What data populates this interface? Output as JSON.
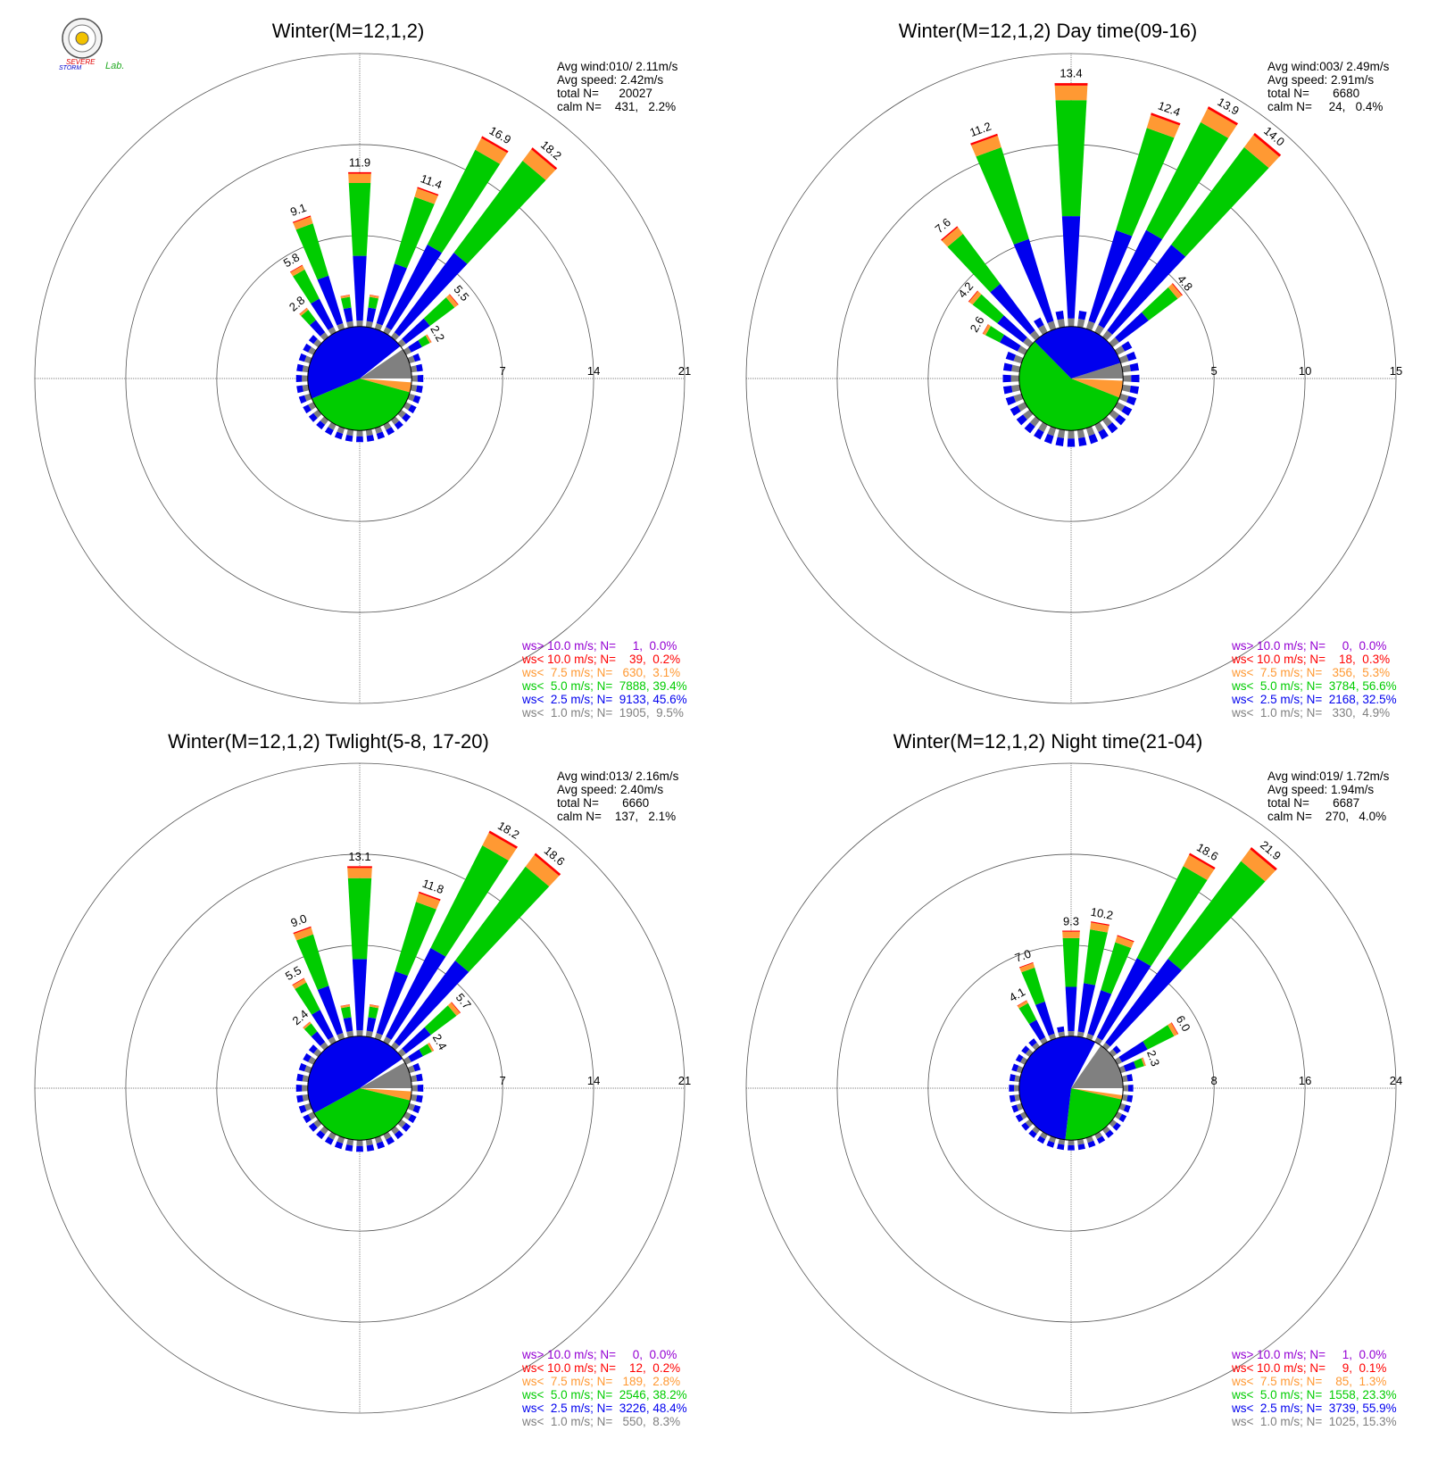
{
  "logo": {
    "lab_text_1": "SEVERE",
    "lab_text_2": "STORM",
    "lab_text_3": "Lab."
  },
  "colors": {
    "gt10": "#9400d3",
    "lt10": "#ff0000",
    "lt7_5": "#ff9933",
    "lt5": "#00cc00",
    "lt2_5": "#0000ee",
    "lt1": "#808080"
  },
  "chart_data": [
    {
      "type": "polar-bar",
      "title": "Winter(M=12,1,2)",
      "stats": {
        "avg_wind": "Avg wind:010/ 2.11m/s",
        "avg_speed": "Avg speed: 2.42m/s",
        "total": "total N=      20027",
        "calm": "calm N=    431,   2.2%"
      },
      "rmax": 21,
      "ring_labels": [
        "7",
        "14",
        "21"
      ],
      "bars": [
        {
          "dir": 320,
          "total": 2.8,
          "label": "2.8"
        },
        {
          "dir": 330,
          "total": 5.8,
          "label": "5.8"
        },
        {
          "dir": 340,
          "total": 9.1,
          "label": "9.1"
        },
        {
          "dir": 350,
          "total": 2.5
        },
        {
          "dir": 0,
          "total": 11.9,
          "label": "11.9"
        },
        {
          "dir": 10,
          "total": 2.5
        },
        {
          "dir": 20,
          "total": 11.4,
          "label": "11.4"
        },
        {
          "dir": 30,
          "total": 16.9,
          "label": "16.9"
        },
        {
          "dir": 40,
          "total": 18.2,
          "label": "18.2"
        },
        {
          "dir": 50,
          "total": 5.5,
          "label": "5.5"
        },
        {
          "dir": 60,
          "total": 2.2,
          "label": "2.2"
        }
      ],
      "pie": [
        {
          "cls": "lt1",
          "pct": 9.5
        },
        {
          "cls": "white",
          "pct": 1.2
        },
        {
          "cls": "lt7_5",
          "pct": 3.1
        },
        {
          "cls": "lt5",
          "pct": 39.4
        },
        {
          "cls": "lt2_5",
          "pct": 45.6
        }
      ],
      "legend": [
        {
          "text": "ws> 10.0 m/s; N=     1,  0.0%",
          "cls": "gt10"
        },
        {
          "text": "ws< 10.0 m/s; N=    39,  0.2%",
          "cls": "lt10"
        },
        {
          "text": "ws<  7.5 m/s; N=   630,  3.1%",
          "cls": "lt7_5"
        },
        {
          "text": "ws<  5.0 m/s; N=  7888, 39.4%",
          "cls": "lt5"
        },
        {
          "text": "ws<  2.5 m/s; N=  9133, 45.6%",
          "cls": "lt2_5"
        },
        {
          "text": "ws<  1.0 m/s; N=  1905,  9.5%",
          "cls": "lt1"
        }
      ]
    },
    {
      "type": "polar-bar",
      "title": "Winter(M=12,1,2) Day time(09-16)",
      "stats": {
        "avg_wind": "Avg wind:003/ 2.49m/s",
        "avg_speed": "Avg speed: 2.91m/s",
        "total": "total N=       6680",
        "calm": "calm N=     24,   0.4%"
      },
      "rmax": 15,
      "ring_labels": [
        "5",
        "10",
        "15"
      ],
      "bars": [
        {
          "dir": 300,
          "total": 2.6,
          "label": "2.6"
        },
        {
          "dir": 310,
          "total": 4.2,
          "label": "4.2"
        },
        {
          "dir": 320,
          "total": 7.6,
          "label": "7.6"
        },
        {
          "dir": 340,
          "total": 11.2,
          "label": "11.2"
        },
        {
          "dir": 0,
          "total": 13.4,
          "label": "13.4"
        },
        {
          "dir": 20,
          "total": 12.4,
          "label": "12.4"
        },
        {
          "dir": 30,
          "total": 13.9,
          "label": "13.9"
        },
        {
          "dir": 40,
          "total": 14.0,
          "label": "14.0"
        },
        {
          "dir": 50,
          "total": 4.8,
          "label": "4.8"
        }
      ],
      "pie": [
        {
          "cls": "lt1",
          "pct": 4.9
        },
        {
          "cls": "white",
          "pct": 0.7
        },
        {
          "cls": "lt7_5",
          "pct": 5.3
        },
        {
          "cls": "lt5",
          "pct": 56.6
        },
        {
          "cls": "lt2_5",
          "pct": 32.5
        }
      ],
      "legend": [
        {
          "text": "ws> 10.0 m/s; N=     0,  0.0%",
          "cls": "gt10"
        },
        {
          "text": "ws< 10.0 m/s; N=    18,  0.3%",
          "cls": "lt10"
        },
        {
          "text": "ws<  7.5 m/s; N=   356,  5.3%",
          "cls": "lt7_5"
        },
        {
          "text": "ws<  5.0 m/s; N=  3784, 56.6%",
          "cls": "lt5"
        },
        {
          "text": "ws<  2.5 m/s; N=  2168, 32.5%",
          "cls": "lt2_5"
        },
        {
          "text": "ws<  1.0 m/s; N=   330,  4.9%",
          "cls": "lt1"
        }
      ]
    },
    {
      "type": "polar-bar",
      "title": "Winter(M=12,1,2) Twlight(5-8, 17-20)",
      "stats": {
        "avg_wind": "Avg wind:013/ 2.16m/s",
        "avg_speed": "Avg speed: 2.40m/s",
        "total": "total N=       6660",
        "calm": "calm N=    137,   2.1%"
      },
      "rmax": 21,
      "ring_labels": [
        "7",
        "14",
        "21"
      ],
      "bars": [
        {
          "dir": 320,
          "total": 2.4,
          "label": "2.4"
        },
        {
          "dir": 330,
          "total": 5.5,
          "label": "5.5"
        },
        {
          "dir": 340,
          "total": 9.0,
          "label": "9.0"
        },
        {
          "dir": 350,
          "total": 2.5
        },
        {
          "dir": 0,
          "total": 13.1,
          "label": "13.1"
        },
        {
          "dir": 10,
          "total": 2.5
        },
        {
          "dir": 20,
          "total": 11.8,
          "label": "11.8"
        },
        {
          "dir": 30,
          "total": 18.2,
          "label": "18.2"
        },
        {
          "dir": 40,
          "total": 18.6,
          "label": "18.6"
        },
        {
          "dir": 50,
          "total": 5.7,
          "label": "5.7"
        },
        {
          "dir": 60,
          "total": 2.4,
          "label": "2.4"
        }
      ],
      "pie": [
        {
          "cls": "lt1",
          "pct": 8.3
        },
        {
          "cls": "white",
          "pct": 1.0
        },
        {
          "cls": "lt7_5",
          "pct": 2.8
        },
        {
          "cls": "lt5",
          "pct": 38.2
        },
        {
          "cls": "lt2_5",
          "pct": 48.4
        }
      ],
      "legend": [
        {
          "text": "ws> 10.0 m/s; N=     0,  0.0%",
          "cls": "gt10"
        },
        {
          "text": "ws< 10.0 m/s; N=    12,  0.2%",
          "cls": "lt10"
        },
        {
          "text": "ws<  7.5 m/s; N=   189,  2.8%",
          "cls": "lt7_5"
        },
        {
          "text": "ws<  5.0 m/s; N=  2546, 38.2%",
          "cls": "lt5"
        },
        {
          "text": "ws<  2.5 m/s; N=  3226, 48.4%",
          "cls": "lt2_5"
        },
        {
          "text": "ws<  1.0 m/s; N=   550,  8.3%",
          "cls": "lt1"
        }
      ]
    },
    {
      "type": "polar-bar",
      "title": "Winter(M=12,1,2) Night time(21-04)",
      "stats": {
        "avg_wind": "Avg wind:019/ 1.72m/s",
        "avg_speed": "Avg speed: 1.94m/s",
        "total": "total N=       6687",
        "calm": "calm N=    270,   4.0%"
      },
      "rmax": 24,
      "ring_labels": [
        "8",
        "16",
        "24"
      ],
      "bars": [
        {
          "dir": 330,
          "total": 4.1,
          "label": "4.1"
        },
        {
          "dir": 340,
          "total": 7.0,
          "label": "7.0"
        },
        {
          "dir": 0,
          "total": 9.3,
          "label": "9.3"
        },
        {
          "dir": 10,
          "total": 10.2,
          "label": "10.2"
        },
        {
          "dir": 20,
          "total": 9.5
        },
        {
          "dir": 30,
          "total": 18.6,
          "label": "18.6"
        },
        {
          "dir": 40,
          "total": 21.9,
          "label": "21.9"
        },
        {
          "dir": 60,
          "total": 6.0,
          "label": "6.0"
        },
        {
          "dir": 70,
          "total": 2.3,
          "label": "2.3"
        }
      ],
      "pie": [
        {
          "cls": "lt1",
          "pct": 15.3
        },
        {
          "cls": "white",
          "pct": 2.2
        },
        {
          "cls": "lt7_5",
          "pct": 1.3
        },
        {
          "cls": "lt5",
          "pct": 23.3
        },
        {
          "cls": "lt2_5",
          "pct": 55.9
        }
      ],
      "legend": [
        {
          "text": "ws> 10.0 m/s; N=     1,  0.0%",
          "cls": "gt10"
        },
        {
          "text": "ws< 10.0 m/s; N=     9,  0.1%",
          "cls": "lt10"
        },
        {
          "text": "ws<  7.5 m/s; N=    85,  1.3%",
          "cls": "lt7_5"
        },
        {
          "text": "ws<  5.0 m/s; N=  1558, 23.3%",
          "cls": "lt5"
        },
        {
          "text": "ws<  2.5 m/s; N=  3739, 55.9%",
          "cls": "lt2_5"
        },
        {
          "text": "ws<  1.0 m/s; N=  1025, 15.3%",
          "cls": "lt1"
        }
      ]
    }
  ]
}
